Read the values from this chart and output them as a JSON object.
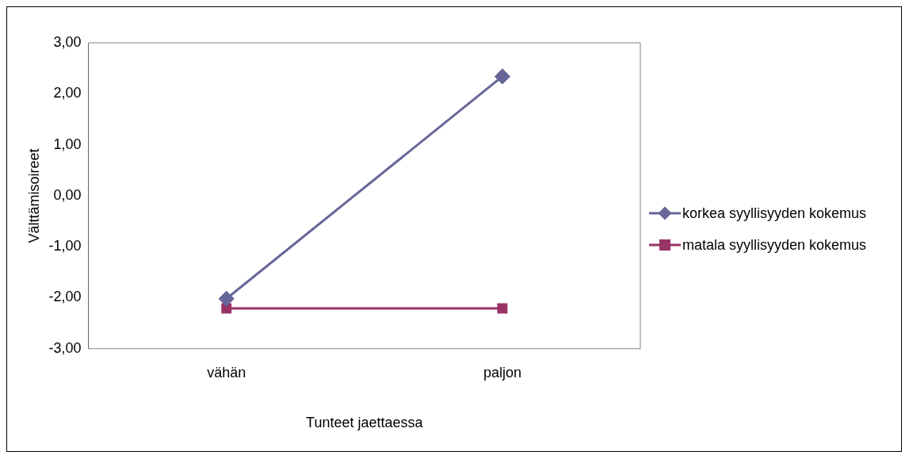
{
  "chart_data": {
    "type": "line",
    "xlabel": "Tunteet jaettaessa",
    "ylabel": "Välttämisoireet",
    "categories": [
      "vähän",
      "paljon"
    ],
    "series": [
      {
        "name": "korkea syyllisyyden kokemus",
        "color": "#666699",
        "values": [
          -2.02,
          2.34
        ],
        "marker": "diamond"
      },
      {
        "name": "matala syyllisyyden kokemus",
        "color": "#993366",
        "values": [
          -2.21,
          -2.21
        ],
        "marker": "square"
      }
    ],
    "ylim": [
      -3,
      3
    ],
    "yticks": [
      {
        "value": -3,
        "label": "-3,00"
      },
      {
        "value": -2,
        "label": "-2,00"
      },
      {
        "value": -1,
        "label": "-1,00"
      },
      {
        "value": 0,
        "label": "0,00"
      },
      {
        "value": 1,
        "label": "1,00"
      },
      {
        "value": 2,
        "label": "2,00"
      },
      {
        "value": 3,
        "label": "3,00"
      }
    ],
    "grid": false,
    "legend": "right"
  }
}
